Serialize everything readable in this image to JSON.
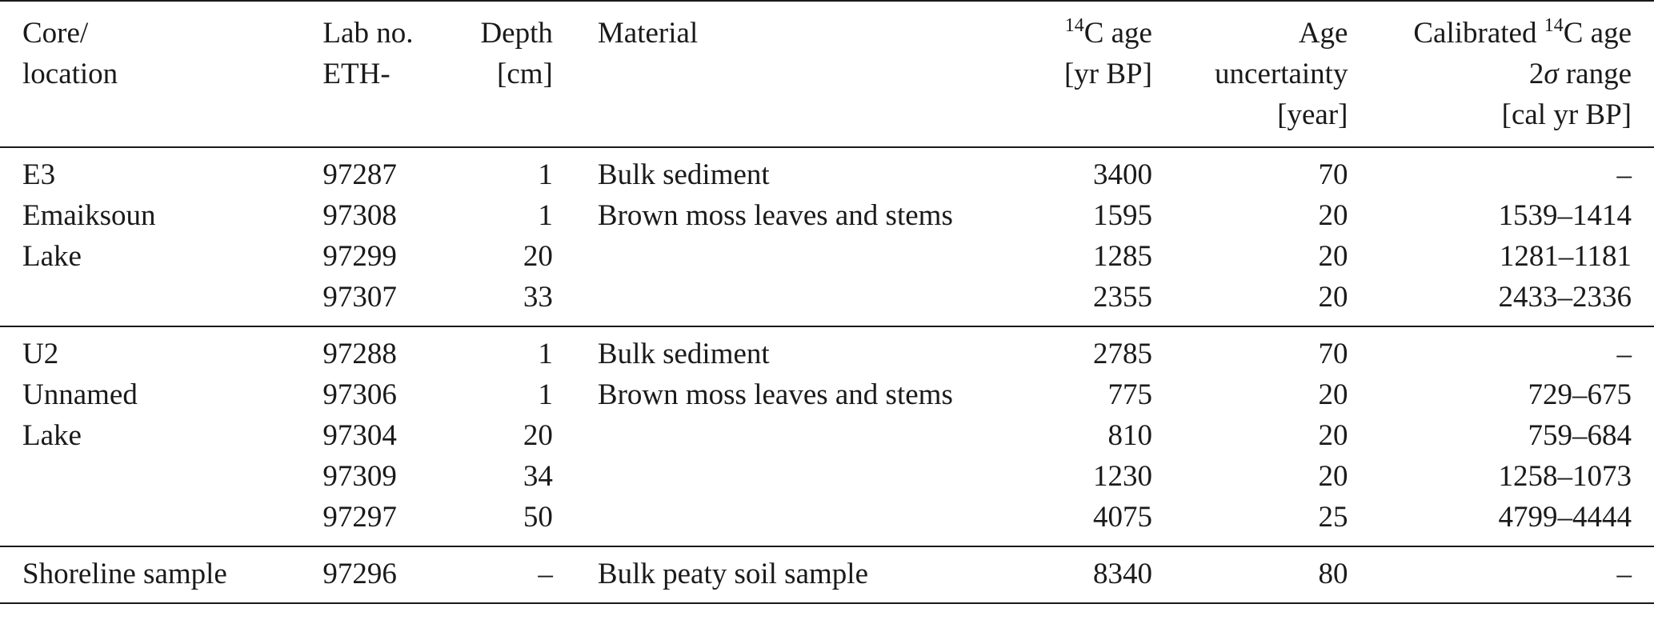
{
  "headers": {
    "core": [
      "Core/",
      "location"
    ],
    "lab": [
      "Lab no.",
      "ETH-"
    ],
    "depth": [
      "Depth",
      "[cm]"
    ],
    "material": [
      "Material"
    ],
    "age": {
      "sup": "14",
      "main": "C age",
      "unit": "[yr BP]"
    },
    "uncertainty": [
      "Age",
      "uncertainty",
      "[year]"
    ],
    "calibrated": {
      "prefix": "Calibrated ",
      "sup": "14",
      "main": "C age",
      "sigma": "σ",
      "range_prefix": "2",
      "range_suffix": " range",
      "unit": "[cal yr BP]"
    }
  },
  "groups": [
    {
      "rows": [
        {
          "core": "E3",
          "lab": "97287",
          "depth": "1",
          "material": "Bulk sediment",
          "age": "3400",
          "unc": "70",
          "cal": "–"
        },
        {
          "core": "Emaiksoun",
          "lab": "97308",
          "depth": "1",
          "material": "Brown moss leaves and stems",
          "age": "1595",
          "unc": "20",
          "cal": "1539–1414"
        },
        {
          "core": "Lake",
          "lab": "97299",
          "depth": "20",
          "material": "",
          "age": "1285",
          "unc": "20",
          "cal": "1281–1181"
        },
        {
          "core": "",
          "lab": "97307",
          "depth": "33",
          "material": "",
          "age": "2355",
          "unc": "20",
          "cal": "2433–2336"
        }
      ]
    },
    {
      "rows": [
        {
          "core": "U2",
          "lab": "97288",
          "depth": "1",
          "material": "Bulk sediment",
          "age": "2785",
          "unc": "70",
          "cal": "–"
        },
        {
          "core": "Unnamed",
          "lab": "97306",
          "depth": "1",
          "material": "Brown moss leaves and stems",
          "age": "775",
          "unc": "20",
          "cal": "729–675"
        },
        {
          "core": "Lake",
          "lab": "97304",
          "depth": "20",
          "material": "",
          "age": "810",
          "unc": "20",
          "cal": "759–684"
        },
        {
          "core": "",
          "lab": "97309",
          "depth": "34",
          "material": "",
          "age": "1230",
          "unc": "20",
          "cal": "1258–1073"
        },
        {
          "core": "",
          "lab": "97297",
          "depth": "50",
          "material": "",
          "age": "4075",
          "unc": "25",
          "cal": "4799–4444"
        }
      ]
    },
    {
      "rows": [
        {
          "core": "Shoreline sample",
          "lab": "97296",
          "depth": "–",
          "material": "Bulk peaty soil sample",
          "age": "8340",
          "unc": "80",
          "cal": "–"
        }
      ]
    }
  ]
}
